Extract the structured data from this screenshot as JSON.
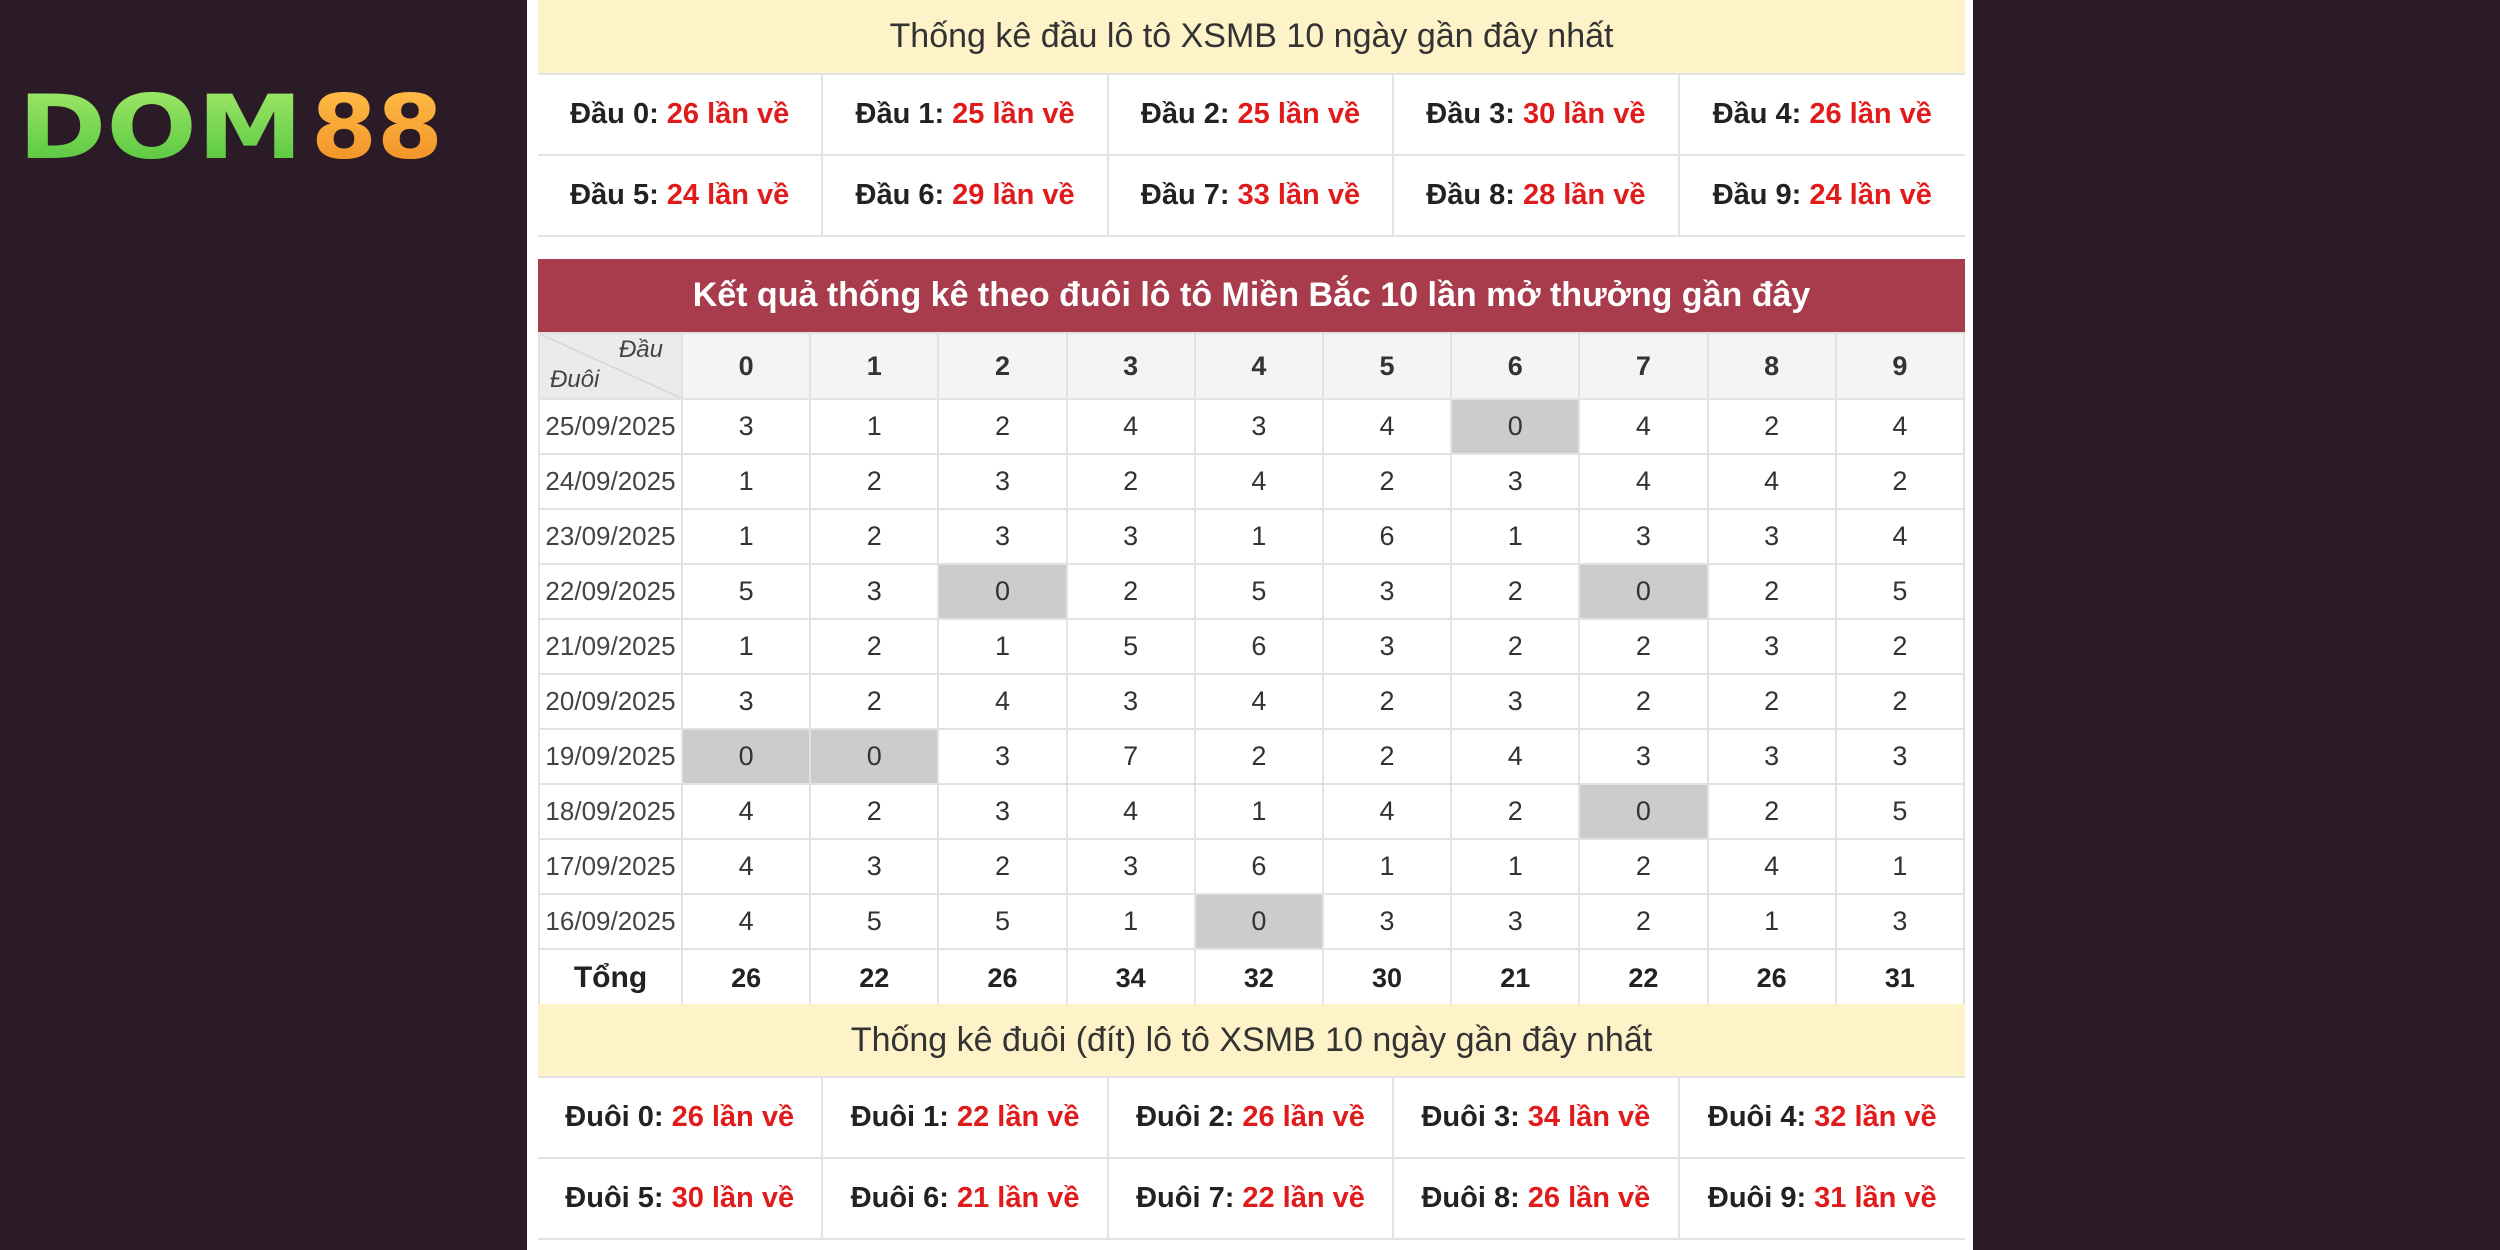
{
  "brand": {
    "logo_left": "DOM",
    "logo_right": "88",
    "color_left": "#7ddc55",
    "color_right": "#f7a535"
  },
  "dau_stats": {
    "title": "Thống kê đầu lô tô XSMB 10 ngày gần đây nhất",
    "items": [
      {
        "label": "Đầu 0:",
        "value": "26 lần về"
      },
      {
        "label": "Đầu 1:",
        "value": "25 lần về"
      },
      {
        "label": "Đầu 2:",
        "value": "25 lần về"
      },
      {
        "label": "Đầu 3:",
        "value": "30 lần về"
      },
      {
        "label": "Đầu 4:",
        "value": "26 lần về"
      },
      {
        "label": "Đầu 5:",
        "value": "24 lần về"
      },
      {
        "label": "Đầu 6:",
        "value": "29 lần về"
      },
      {
        "label": "Đầu 7:",
        "value": "33 lần về"
      },
      {
        "label": "Đầu 8:",
        "value": "28 lần về"
      },
      {
        "label": "Đầu 9:",
        "value": "24 lần về"
      }
    ]
  },
  "result_table": {
    "title": "Kết quả thống kê theo đuôi lô tô Miền Bắc 10 lần mở thưởng gần đây",
    "corner_top": "Đầu",
    "corner_bottom": "Đuôi",
    "columns": [
      "0",
      "1",
      "2",
      "3",
      "4",
      "5",
      "6",
      "7",
      "8",
      "9"
    ],
    "rows": [
      {
        "date": "25/09/2025",
        "values": [
          "3",
          "1",
          "2",
          "4",
          "3",
          "4",
          "0",
          "4",
          "2",
          "4"
        ]
      },
      {
        "date": "24/09/2025",
        "values": [
          "1",
          "2",
          "3",
          "2",
          "4",
          "2",
          "3",
          "4",
          "4",
          "2"
        ]
      },
      {
        "date": "23/09/2025",
        "values": [
          "1",
          "2",
          "3",
          "3",
          "1",
          "6",
          "1",
          "3",
          "3",
          "4"
        ]
      },
      {
        "date": "22/09/2025",
        "values": [
          "5",
          "3",
          "0",
          "2",
          "5",
          "3",
          "2",
          "0",
          "2",
          "5"
        ]
      },
      {
        "date": "21/09/2025",
        "values": [
          "1",
          "2",
          "1",
          "5",
          "6",
          "3",
          "2",
          "2",
          "3",
          "2"
        ]
      },
      {
        "date": "20/09/2025",
        "values": [
          "3",
          "2",
          "4",
          "3",
          "4",
          "2",
          "3",
          "2",
          "2",
          "2"
        ]
      },
      {
        "date": "19/09/2025",
        "values": [
          "0",
          "0",
          "3",
          "7",
          "2",
          "2",
          "4",
          "3",
          "3",
          "3"
        ]
      },
      {
        "date": "18/09/2025",
        "values": [
          "4",
          "2",
          "3",
          "4",
          "1",
          "4",
          "2",
          "0",
          "2",
          "5"
        ]
      },
      {
        "date": "17/09/2025",
        "values": [
          "4",
          "3",
          "2",
          "3",
          "6",
          "1",
          "1",
          "2",
          "4",
          "1"
        ]
      },
      {
        "date": "16/09/2025",
        "values": [
          "4",
          "5",
          "5",
          "1",
          "0",
          "3",
          "3",
          "2",
          "1",
          "3"
        ]
      }
    ],
    "total_label": "Tổng",
    "totals": [
      "26",
      "22",
      "26",
      "34",
      "32",
      "30",
      "21",
      "22",
      "26",
      "31"
    ]
  },
  "duoi_stats": {
    "title": "Thống kê đuôi (đít) lô tô XSMB 10 ngày gần đây nhất",
    "items": [
      {
        "label": "Đuôi 0:",
        "value": "26 lần về"
      },
      {
        "label": "Đuôi 1:",
        "value": "22 lần về"
      },
      {
        "label": "Đuôi 2:",
        "value": "26 lần về"
      },
      {
        "label": "Đuôi 3:",
        "value": "34 lần về"
      },
      {
        "label": "Đuôi 4:",
        "value": "32 lần về"
      },
      {
        "label": "Đuôi 5:",
        "value": "30 lần về"
      },
      {
        "label": "Đuôi 6:",
        "value": "21 lần về"
      },
      {
        "label": "Đuôi 7:",
        "value": "22 lần về"
      },
      {
        "label": "Đuôi 8:",
        "value": "26 lần về"
      },
      {
        "label": "Đuôi 9:",
        "value": "31 lần về"
      }
    ]
  }
}
